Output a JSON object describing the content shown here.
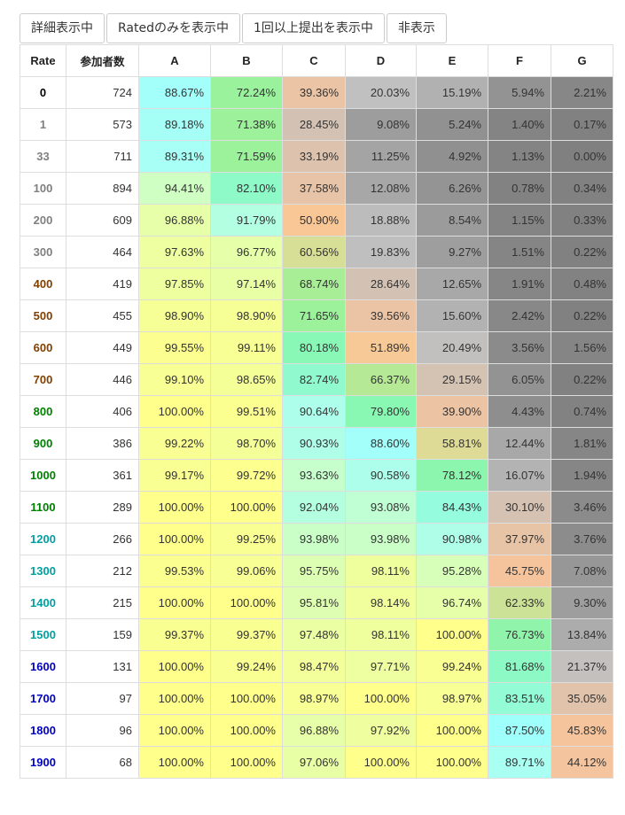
{
  "buttons": {
    "detail": "詳細表示中",
    "rated_only": "Ratedのみを表示中",
    "submitted": "1回以上提出を表示中",
    "hide": "非表示"
  },
  "table": {
    "headers": [
      "Rate",
      "参加者数",
      "A",
      "B",
      "C",
      "D",
      "E",
      "F",
      "G"
    ],
    "rows": [
      {
        "rate": "0",
        "participants": "724",
        "cells": [
          "88.67%",
          "72.24%",
          "39.36%",
          "20.03%",
          "15.19%",
          "5.94%",
          "2.21%"
        ]
      },
      {
        "rate": "1",
        "participants": "573",
        "cells": [
          "89.18%",
          "71.38%",
          "28.45%",
          "9.08%",
          "5.24%",
          "1.40%",
          "0.17%"
        ]
      },
      {
        "rate": "33",
        "participants": "711",
        "cells": [
          "89.31%",
          "71.59%",
          "33.19%",
          "11.25%",
          "4.92%",
          "1.13%",
          "0.00%"
        ]
      },
      {
        "rate": "100",
        "participants": "894",
        "cells": [
          "94.41%",
          "82.10%",
          "37.58%",
          "12.08%",
          "6.26%",
          "0.78%",
          "0.34%"
        ]
      },
      {
        "rate": "200",
        "participants": "609",
        "cells": [
          "96.88%",
          "91.79%",
          "50.90%",
          "18.88%",
          "8.54%",
          "1.15%",
          "0.33%"
        ]
      },
      {
        "rate": "300",
        "participants": "464",
        "cells": [
          "97.63%",
          "96.77%",
          "60.56%",
          "19.83%",
          "9.27%",
          "1.51%",
          "0.22%"
        ]
      },
      {
        "rate": "400",
        "participants": "419",
        "cells": [
          "97.85%",
          "97.14%",
          "68.74%",
          "28.64%",
          "12.65%",
          "1.91%",
          "0.48%"
        ]
      },
      {
        "rate": "500",
        "participants": "455",
        "cells": [
          "98.90%",
          "98.90%",
          "71.65%",
          "39.56%",
          "15.60%",
          "2.42%",
          "0.22%"
        ]
      },
      {
        "rate": "600",
        "participants": "449",
        "cells": [
          "99.55%",
          "99.11%",
          "80.18%",
          "51.89%",
          "20.49%",
          "3.56%",
          "1.56%"
        ]
      },
      {
        "rate": "700",
        "participants": "446",
        "cells": [
          "99.10%",
          "98.65%",
          "82.74%",
          "66.37%",
          "29.15%",
          "6.05%",
          "0.22%"
        ]
      },
      {
        "rate": "800",
        "participants": "406",
        "cells": [
          "100.00%",
          "99.51%",
          "90.64%",
          "79.80%",
          "39.90%",
          "4.43%",
          "0.74%"
        ]
      },
      {
        "rate": "900",
        "participants": "386",
        "cells": [
          "99.22%",
          "98.70%",
          "90.93%",
          "88.60%",
          "58.81%",
          "12.44%",
          "1.81%"
        ]
      },
      {
        "rate": "1000",
        "participants": "361",
        "cells": [
          "99.17%",
          "99.72%",
          "93.63%",
          "90.58%",
          "78.12%",
          "16.07%",
          "1.94%"
        ]
      },
      {
        "rate": "1100",
        "participants": "289",
        "cells": [
          "100.00%",
          "100.00%",
          "92.04%",
          "93.08%",
          "84.43%",
          "30.10%",
          "3.46%"
        ]
      },
      {
        "rate": "1200",
        "participants": "266",
        "cells": [
          "100.00%",
          "99.25%",
          "93.98%",
          "93.98%",
          "90.98%",
          "37.97%",
          "3.76%"
        ]
      },
      {
        "rate": "1300",
        "participants": "212",
        "cells": [
          "99.53%",
          "99.06%",
          "95.75%",
          "98.11%",
          "95.28%",
          "45.75%",
          "7.08%"
        ]
      },
      {
        "rate": "1400",
        "participants": "215",
        "cells": [
          "100.00%",
          "100.00%",
          "95.81%",
          "98.14%",
          "96.74%",
          "62.33%",
          "9.30%"
        ]
      },
      {
        "rate": "1500",
        "participants": "159",
        "cells": [
          "99.37%",
          "99.37%",
          "97.48%",
          "98.11%",
          "100.00%",
          "76.73%",
          "13.84%"
        ]
      },
      {
        "rate": "1600",
        "participants": "131",
        "cells": [
          "100.00%",
          "99.24%",
          "98.47%",
          "97.71%",
          "99.24%",
          "81.68%",
          "21.37%"
        ]
      },
      {
        "rate": "1700",
        "participants": "97",
        "cells": [
          "100.00%",
          "100.00%",
          "98.97%",
          "100.00%",
          "98.97%",
          "83.51%",
          "35.05%"
        ]
      },
      {
        "rate": "1800",
        "participants": "96",
        "cells": [
          "100.00%",
          "100.00%",
          "96.88%",
          "97.92%",
          "100.00%",
          "87.50%",
          "45.83%"
        ]
      },
      {
        "rate": "1900",
        "participants": "68",
        "cells": [
          "100.00%",
          "100.00%",
          "97.06%",
          "100.00%",
          "100.00%",
          "89.71%",
          "44.12%"
        ]
      }
    ]
  },
  "rate_colors": {
    "0": "#000000",
    "1": "#808080",
    "33": "#808080",
    "100": "#808080",
    "200": "#808080",
    "300": "#808080",
    "400": "#804000",
    "500": "#804000",
    "600": "#804000",
    "700": "#804000",
    "800": "#008000",
    "900": "#008000",
    "1000": "#008000",
    "1100": "#008000",
    "1200": "#00a0a0",
    "1300": "#00a0a0",
    "1400": "#00a0a0",
    "1500": "#00a0a0",
    "1600": "#0000c0",
    "1700": "#0000c0",
    "1800": "#0000c0",
    "1900": "#0000c0"
  }
}
